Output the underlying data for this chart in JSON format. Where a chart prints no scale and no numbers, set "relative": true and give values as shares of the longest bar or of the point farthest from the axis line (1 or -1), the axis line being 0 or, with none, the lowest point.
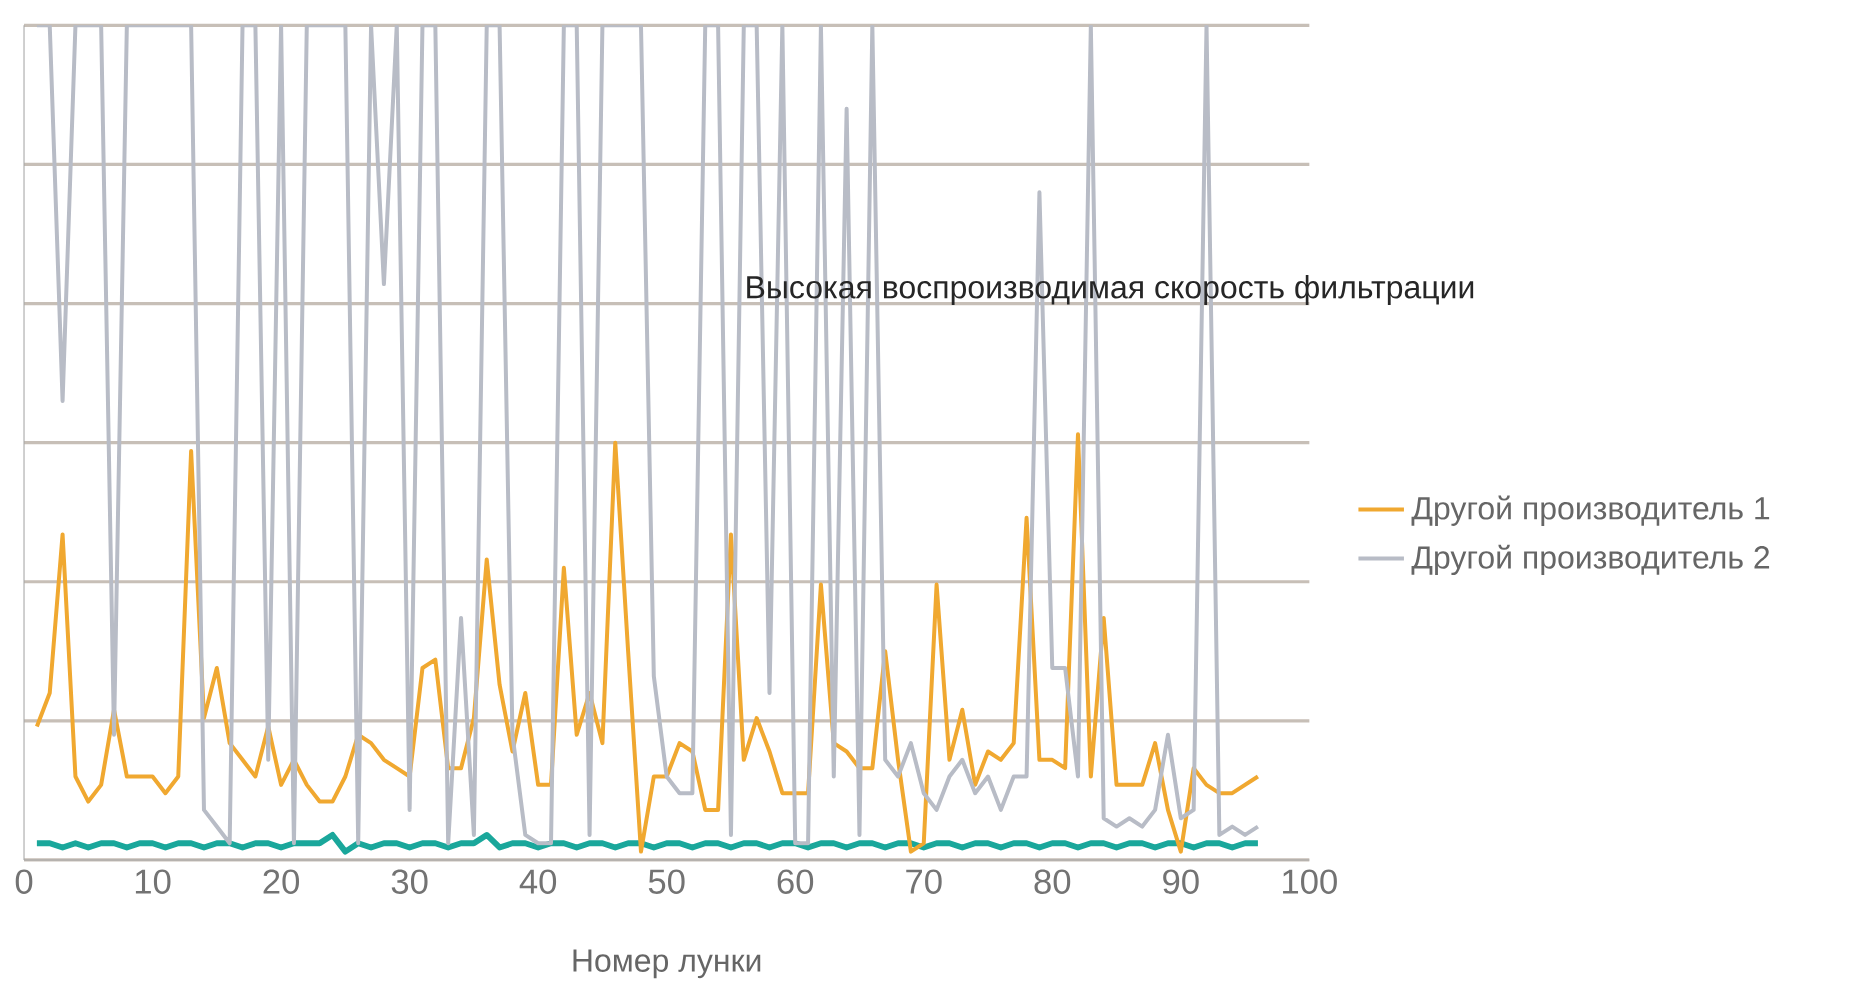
{
  "chart_data": {
    "type": "line",
    "xlabel": "Номер лунки",
    "annotations": [
      "Высокая воспроизводимая скорость фильтрации"
    ],
    "relative": true,
    "grid": "y",
    "legend": "right",
    "xlim": [
      0,
      100
    ],
    "xticks": [
      0,
      10,
      20,
      30,
      40,
      50,
      60,
      70,
      80,
      90,
      100
    ],
    "x": [
      1,
      2,
      3,
      4,
      5,
      6,
      7,
      8,
      9,
      10,
      11,
      12,
      13,
      14,
      15,
      16,
      17,
      18,
      19,
      20,
      21,
      22,
      23,
      24,
      25,
      26,
      27,
      28,
      29,
      30,
      31,
      32,
      33,
      34,
      35,
      36,
      37,
      38,
      39,
      40,
      41,
      42,
      43,
      44,
      45,
      46,
      47,
      48,
      49,
      50,
      51,
      52,
      53,
      54,
      55,
      56,
      57,
      58,
      59,
      60,
      61,
      62,
      63,
      64,
      65,
      66,
      67,
      68,
      69,
      70,
      71,
      72,
      73,
      74,
      75,
      76,
      77,
      78,
      79,
      80,
      81,
      82,
      83,
      84,
      85,
      86,
      87,
      88,
      89,
      90,
      91,
      92,
      93,
      94,
      95,
      96
    ],
    "series": [
      {
        "color": "#1aa79b",
        "values": [
          0.02,
          0.02,
          0.015,
          0.02,
          0.015,
          0.02,
          0.02,
          0.015,
          0.02,
          0.02,
          0.015,
          0.02,
          0.02,
          0.015,
          0.02,
          0.02,
          0.015,
          0.02,
          0.02,
          0.015,
          0.02,
          0.02,
          0.02,
          0.03,
          0.01,
          0.02,
          0.015,
          0.02,
          0.02,
          0.015,
          0.02,
          0.02,
          0.015,
          0.02,
          0.02,
          0.03,
          0.015,
          0.02,
          0.02,
          0.015,
          0.02,
          0.02,
          0.015,
          0.02,
          0.02,
          0.015,
          0.02,
          0.02,
          0.015,
          0.02,
          0.02,
          0.015,
          0.02,
          0.02,
          0.015,
          0.02,
          0.02,
          0.015,
          0.02,
          0.02,
          0.015,
          0.02,
          0.02,
          0.015,
          0.02,
          0.02,
          0.015,
          0.02,
          0.02,
          0.015,
          0.02,
          0.02,
          0.015,
          0.02,
          0.02,
          0.015,
          0.02,
          0.02,
          0.015,
          0.02,
          0.02,
          0.015,
          0.02,
          0.02,
          0.015,
          0.02,
          0.02,
          0.015,
          0.02,
          0.02,
          0.015,
          0.02,
          0.02,
          0.015,
          0.02,
          0.02
        ]
      },
      {
        "name": "Другой производитель 1",
        "color": "#f0a830",
        "values": [
          0.16,
          0.2,
          0.39,
          0.1,
          0.07,
          0.09,
          0.18,
          0.1,
          0.1,
          0.1,
          0.08,
          0.1,
          0.49,
          0.17,
          0.23,
          0.14,
          0.12,
          0.1,
          0.16,
          0.09,
          0.12,
          0.09,
          0.07,
          0.07,
          0.1,
          0.15,
          0.14,
          0.12,
          0.11,
          0.1,
          0.23,
          0.24,
          0.11,
          0.11,
          0.17,
          0.36,
          0.21,
          0.13,
          0.2,
          0.09,
          0.09,
          0.35,
          0.15,
          0.2,
          0.14,
          0.5,
          0.25,
          0.01,
          0.1,
          0.1,
          0.14,
          0.13,
          0.06,
          0.06,
          0.39,
          0.12,
          0.17,
          0.13,
          0.08,
          0.08,
          0.08,
          0.33,
          0.14,
          0.13,
          0.11,
          0.11,
          0.25,
          0.12,
          0.01,
          0.02,
          0.33,
          0.12,
          0.18,
          0.09,
          0.13,
          0.12,
          0.14,
          0.41,
          0.12,
          0.12,
          0.11,
          0.51,
          0.1,
          0.29,
          0.09,
          0.09,
          0.09,
          0.14,
          0.06,
          0.01,
          0.11,
          0.09,
          0.08,
          0.08,
          0.09,
          0.1
        ]
      },
      {
        "name": "Другой производитель 2",
        "color": "#b8bcc6",
        "values": [
          1,
          1,
          0.55,
          1,
          1,
          1,
          0.15,
          1,
          1,
          1,
          1,
          1,
          1,
          0.06,
          0.04,
          0.02,
          1,
          1,
          0.12,
          1,
          0.02,
          1,
          1,
          1,
          1,
          0.02,
          1,
          0.69,
          1,
          0.06,
          1,
          1,
          0.02,
          0.29,
          0.03,
          1,
          1,
          0.15,
          0.03,
          0.02,
          0.02,
          1,
          1,
          0.03,
          1,
          1,
          1,
          1,
          0.22,
          0.1,
          0.08,
          0.08,
          1,
          1,
          0.03,
          1,
          1,
          0.2,
          1,
          0.02,
          0.02,
          1,
          0.1,
          0.9,
          0.03,
          1,
          0.12,
          0.1,
          0.14,
          0.08,
          0.06,
          0.1,
          0.12,
          0.08,
          0.1,
          0.06,
          0.1,
          0.1,
          0.8,
          0.23,
          0.23,
          0.1,
          1,
          0.05,
          0.04,
          0.05,
          0.04,
          0.06,
          0.15,
          0.05,
          0.06,
          1,
          0.03,
          0.04,
          0.03,
          0.04
        ]
      }
    ]
  }
}
